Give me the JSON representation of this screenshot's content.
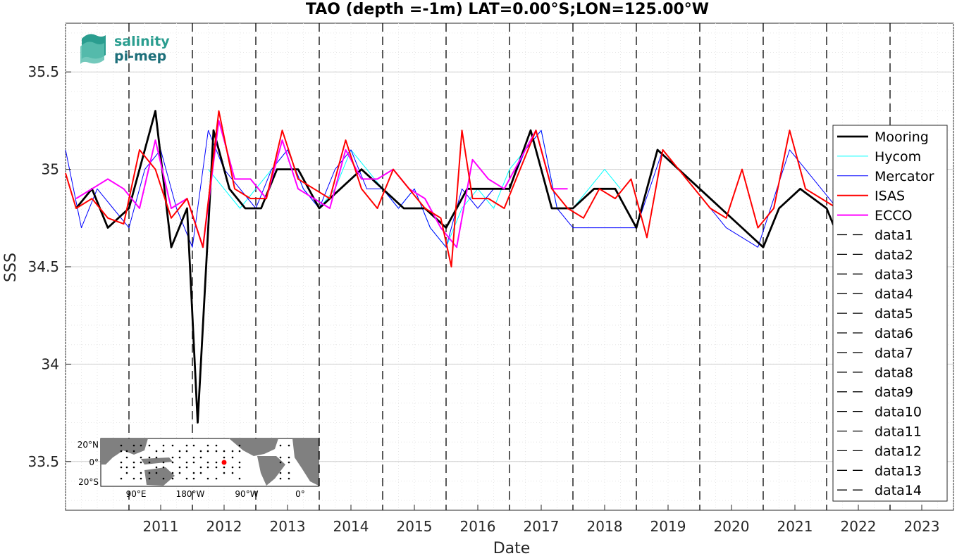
{
  "chart_data": {
    "type": "line",
    "title": "TAO (depth =-1m) LAT=0.00°S;LON=125.00°W",
    "xlabel": "Date",
    "ylabel": "SSS",
    "xlim": [
      "2010-01-01",
      "2024-01-01"
    ],
    "ylim": [
      33.25,
      35.75
    ],
    "x_ticks": [
      "2011",
      "2012",
      "2013",
      "2014",
      "2015",
      "2016",
      "2017",
      "2018",
      "2019",
      "2020",
      "2021",
      "2022",
      "2023"
    ],
    "y_ticks": [
      "33.5",
      "34",
      "34.5",
      "35",
      "35.5"
    ],
    "grid": "on",
    "legend_position": "right",
    "vertical_dashed_lines": [
      "2011-01-01",
      "2012-01-01",
      "2013-01-01",
      "2014-01-01",
      "2015-01-01",
      "2016-01-01",
      "2017-01-01",
      "2018-01-01",
      "2019-01-01",
      "2020-01-01",
      "2021-01-01",
      "2022-01-01",
      "2023-01-01"
    ],
    "series": [
      {
        "name": "Mooring",
        "color": "#000000",
        "x": [
          "2010-03",
          "2010-06",
          "2010-09",
          "2011-01",
          "2011-04",
          "2011-06",
          "2011-09",
          "2011-12",
          "2012-02",
          "2012-05",
          "2012-08",
          "2012-11",
          "2013-02",
          "2013-05",
          "2013-09",
          "2014-01",
          "2014-05",
          "2014-09",
          "2015-01",
          "2015-05",
          "2015-09",
          "2016-01",
          "2016-05",
          "2016-09",
          "2017-01",
          "2017-05",
          "2017-09",
          "2018-01",
          "2018-05",
          "2018-09",
          "2019-01",
          "2019-05",
          "2019-09",
          "2020-01",
          "2020-05",
          "2020-09",
          "2021-01",
          "2021-04",
          "2021-08",
          "2022-01",
          "2022-04",
          "2022-06"
        ],
        "values": [
          34.8,
          34.9,
          34.7,
          34.8,
          35.1,
          35.3,
          34.6,
          34.8,
          33.7,
          35.2,
          34.9,
          34.8,
          34.8,
          35.0,
          35.0,
          34.8,
          34.9,
          35.0,
          34.9,
          34.8,
          34.8,
          34.7,
          34.9,
          34.9,
          34.9,
          35.2,
          34.8,
          34.8,
          34.9,
          34.9,
          34.7,
          35.1,
          35.0,
          34.9,
          34.8,
          34.7,
          34.6,
          34.8,
          34.9,
          34.8,
          34.6,
          35.0
        ]
      },
      {
        "name": "Hycom",
        "color": "#00ffff",
        "x": [
          "2012-04",
          "2012-07",
          "2012-10",
          "2013-01",
          "2013-04",
          "2013-07",
          "2013-10",
          "2014-01",
          "2014-04",
          "2014-07",
          "2014-10",
          "2015-01",
          "2015-04",
          "2015-07",
          "2015-10",
          "2016-01",
          "2016-04",
          "2016-07",
          "2016-10",
          "2017-01",
          "2017-04",
          "2017-07",
          "2017-10",
          "2018-01",
          "2018-04",
          "2018-07",
          "2018-10"
        ],
        "values": [
          35.0,
          34.9,
          34.8,
          34.9,
          35.0,
          35.1,
          34.9,
          34.8,
          34.9,
          35.1,
          35.0,
          34.9,
          34.8,
          34.9,
          34.7,
          34.6,
          34.8,
          34.9,
          34.8,
          35.0,
          35.1,
          35.2,
          34.8,
          34.8,
          34.9,
          35.0,
          34.9
        ]
      },
      {
        "name": "Mercator",
        "color": "#0000ff",
        "x": [
          "2010-01",
          "2010-04",
          "2010-07",
          "2010-10",
          "2011-01",
          "2011-04",
          "2011-07",
          "2011-10",
          "2012-01",
          "2012-04",
          "2012-07",
          "2012-10",
          "2013-01",
          "2013-04",
          "2013-07",
          "2013-10",
          "2014-01",
          "2014-04",
          "2014-07",
          "2014-10",
          "2015-01",
          "2015-04",
          "2015-07",
          "2015-10",
          "2016-01",
          "2016-04",
          "2016-07",
          "2016-10",
          "2017-01",
          "2017-04",
          "2017-07",
          "2017-10",
          "2018-01",
          "2019-01",
          "2019-06",
          "2019-12",
          "2020-06",
          "2020-12",
          "2021-06",
          "2021-12",
          "2022-06",
          "2022-12",
          "2023-06",
          "2023-10"
        ],
        "values": [
          35.1,
          34.7,
          34.9,
          34.8,
          34.7,
          35.0,
          35.1,
          34.8,
          34.6,
          35.2,
          35.0,
          34.9,
          34.8,
          35.0,
          35.1,
          34.9,
          34.8,
          35.0,
          35.1,
          34.9,
          34.9,
          34.8,
          34.9,
          34.7,
          34.6,
          34.9,
          34.8,
          34.9,
          34.9,
          35.1,
          35.2,
          34.8,
          34.7,
          34.7,
          35.1,
          34.9,
          34.7,
          34.6,
          35.1,
          34.9,
          34.7,
          34.8,
          35.2,
          35.0
        ]
      },
      {
        "name": "ISAS",
        "color": "#ff0000",
        "x": [
          "2010-01",
          "2010-03",
          "2010-06",
          "2010-09",
          "2010-12",
          "2011-03",
          "2011-06",
          "2011-09",
          "2011-12",
          "2012-03",
          "2012-06",
          "2012-09",
          "2012-12",
          "2013-03",
          "2013-06",
          "2013-09",
          "2013-12",
          "2014-03",
          "2014-06",
          "2014-09",
          "2014-12",
          "2015-03",
          "2015-06",
          "2015-09",
          "2015-12",
          "2016-02",
          "2016-04",
          "2016-06",
          "2016-09",
          "2016-12",
          "2017-03",
          "2017-06",
          "2017-09",
          "2017-12",
          "2018-03",
          "2018-06",
          "2018-09",
          "2018-12",
          "2019-03",
          "2019-06",
          "2019-09",
          "2019-12",
          "2020-03",
          "2020-06",
          "2020-09",
          "2020-12",
          "2021-03",
          "2021-06",
          "2021-09",
          "2021-12",
          "2022-03",
          "2022-06"
        ],
        "values": [
          34.98,
          34.8,
          34.85,
          34.75,
          34.72,
          35.1,
          35.0,
          34.75,
          34.85,
          34.6,
          35.3,
          34.9,
          34.85,
          34.85,
          35.2,
          34.95,
          34.9,
          34.85,
          35.15,
          34.9,
          34.8,
          35.0,
          34.9,
          34.8,
          34.75,
          34.5,
          35.2,
          34.85,
          34.85,
          34.8,
          35.0,
          35.2,
          34.9,
          34.8,
          34.75,
          34.9,
          34.85,
          34.95,
          34.65,
          35.1,
          35.0,
          34.9,
          34.8,
          34.75,
          35.0,
          34.7,
          34.8,
          35.2,
          34.9,
          34.85,
          34.8,
          34.7
        ]
      },
      {
        "name": "ECCO",
        "color": "#ff00ff",
        "x": [
          "2010-03",
          "2010-06",
          "2010-09",
          "2010-12",
          "2011-03",
          "2011-06",
          "2011-09",
          "2011-12",
          "2012-03",
          "2012-06",
          "2012-09",
          "2012-12",
          "2013-03",
          "2013-06",
          "2013-09",
          "2013-12",
          "2014-03",
          "2014-06",
          "2014-09",
          "2014-12",
          "2015-03",
          "2015-06",
          "2015-09",
          "2015-12",
          "2016-03",
          "2016-06",
          "2016-09",
          "2016-12",
          "2017-03",
          "2017-06",
          "2017-09",
          "2017-12"
        ],
        "values": [
          34.85,
          34.9,
          34.95,
          34.9,
          34.8,
          35.15,
          34.8,
          34.85,
          34.6,
          35.25,
          34.95,
          34.95,
          34.85,
          35.15,
          34.9,
          34.85,
          34.8,
          35.1,
          34.95,
          34.95,
          35.0,
          34.9,
          34.85,
          34.7,
          34.6,
          35.05,
          34.95,
          34.9,
          35.05,
          35.2,
          34.9,
          34.9
        ]
      }
    ],
    "legend_entries": [
      "Mooring",
      "Hycom",
      "Mercator",
      "ISAS",
      "ECCO",
      "data1",
      "data2",
      "data3",
      "data4",
      "data5",
      "data6",
      "data7",
      "data8",
      "data9",
      "data10",
      "data11",
      "data12",
      "data13",
      "data14"
    ],
    "inset_map": {
      "lat_labels": [
        "20°N",
        "0°",
        "20°S"
      ],
      "lon_labels": [
        "90°E",
        "180°W",
        "90°W",
        "0°"
      ]
    },
    "logo": {
      "line1": "salinity",
      "line2": "pi-mep"
    }
  }
}
